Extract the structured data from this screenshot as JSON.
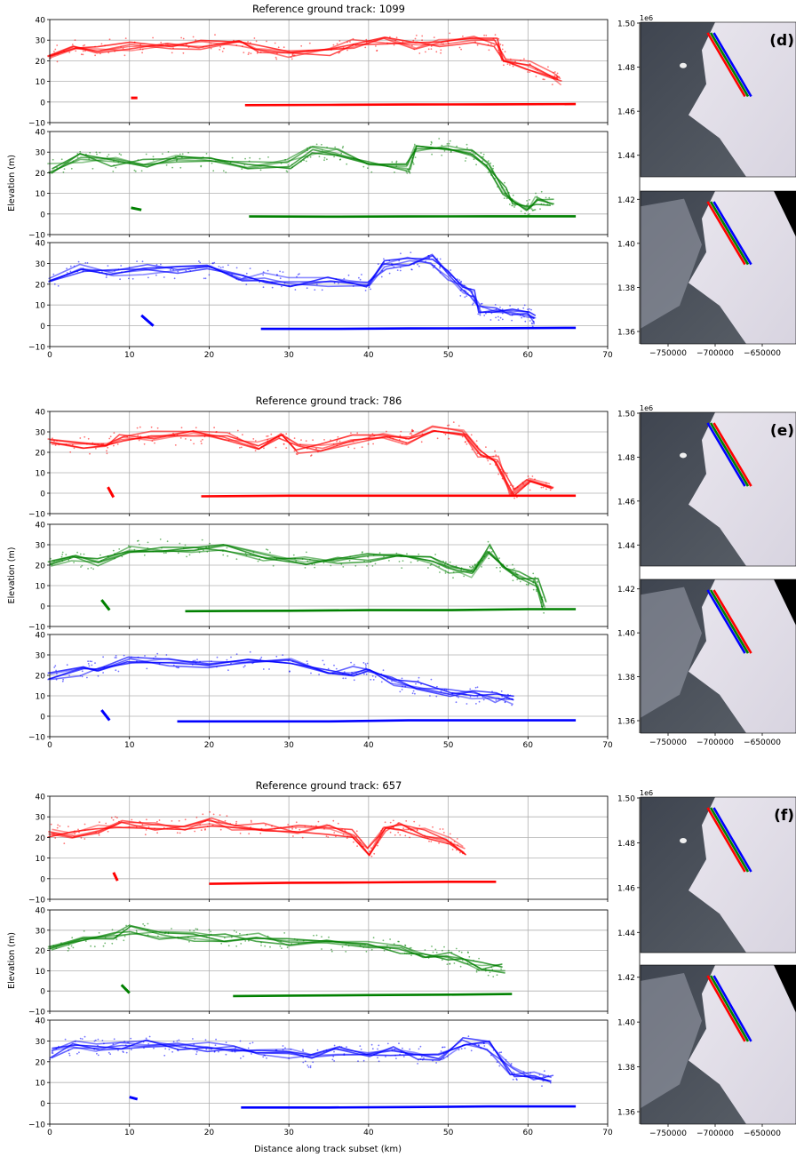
{
  "figure": {
    "shared_xlabel": "Distance along track subset (km)",
    "elev_ylabel": "Elevation (m)",
    "map_exponent_label": "1e6",
    "colors": {
      "track_red": "#ff0000",
      "track_green": "#008000",
      "track_blue": "#0000ff",
      "grid": "#b0b0b0"
    }
  },
  "chart_data": [
    {
      "type": "scatter",
      "group": "d",
      "title": "Reference ground track: 1099",
      "xlabel": "",
      "ylabel": "Elevation (m)",
      "xlim": [
        0,
        70
      ],
      "ylim": [
        -10,
        40
      ],
      "xticks": [
        0,
        10,
        20,
        30,
        40,
        50,
        60,
        70
      ],
      "yticks": [
        -10,
        0,
        10,
        20,
        30,
        40
      ],
      "grid": true,
      "panels": [
        {
          "color": "#ff0000",
          "upper": [
            [
              0,
              22
            ],
            [
              3,
              28
            ],
            [
              6,
              26
            ],
            [
              10,
              27
            ],
            [
              15,
              27
            ],
            [
              19,
              28
            ],
            [
              24,
              29
            ],
            [
              26,
              26
            ],
            [
              30,
              24
            ],
            [
              35,
              25
            ],
            [
              38,
              28
            ],
            [
              42,
              29
            ],
            [
              46,
              28
            ],
            [
              49,
              28
            ],
            [
              53,
              31
            ],
            [
              56,
              29
            ],
            [
              57,
              22
            ],
            [
              60,
              18
            ],
            [
              63,
              12
            ],
            [
              64,
              10
            ]
          ],
          "lower": [
            [
              24.5,
              -1.5
            ],
            [
              35,
              -1.4
            ],
            [
              45,
              -1.2
            ],
            [
              55,
              -1.1
            ],
            [
              66,
              -1
            ]
          ],
          "dips": [
            [
              10.2,
              -1
            ],
            [
              11,
              2
            ]
          ]
        },
        {
          "color": "#008000",
          "upper": [
            [
              0,
              22
            ],
            [
              4,
              27
            ],
            [
              8,
              25
            ],
            [
              12,
              25
            ],
            [
              16,
              27
            ],
            [
              20,
              25
            ],
            [
              25,
              24
            ],
            [
              30,
              24
            ],
            [
              33,
              31
            ],
            [
              36,
              30
            ],
            [
              40,
              24
            ],
            [
              45,
              22
            ],
            [
              46,
              32
            ],
            [
              50,
              33
            ],
            [
              53,
              29
            ],
            [
              55,
              23
            ],
            [
              57,
              12
            ],
            [
              58,
              7
            ],
            [
              60,
              2
            ],
            [
              61,
              7
            ],
            [
              63,
              6
            ]
          ],
          "lower": [
            [
              25,
              -1.2
            ],
            [
              35,
              -1.3
            ],
            [
              45,
              -1.2
            ],
            [
              55,
              -1.1
            ],
            [
              66,
              -1.1
            ]
          ],
          "dips": [
            [
              10.2,
              0
            ],
            [
              11.5,
              2
            ]
          ]
        },
        {
          "color": "#0000ff",
          "upper": [
            [
              0,
              22
            ],
            [
              4,
              28
            ],
            [
              8,
              26
            ],
            [
              12,
              27
            ],
            [
              16,
              27
            ],
            [
              20,
              27
            ],
            [
              24,
              24
            ],
            [
              27,
              23
            ],
            [
              30,
              21
            ],
            [
              35,
              21
            ],
            [
              40,
              21
            ],
            [
              42,
              29
            ],
            [
              45,
              31
            ],
            [
              48,
              32
            ],
            [
              50,
              24
            ],
            [
              52,
              17
            ],
            [
              53,
              15
            ],
            [
              54,
              7
            ],
            [
              56,
              7
            ],
            [
              58,
              7
            ],
            [
              60,
              6
            ],
            [
              61,
              3
            ]
          ],
          "lower": [
            [
              26.5,
              -1.5
            ],
            [
              35,
              -1.5
            ],
            [
              45,
              -1.3
            ],
            [
              55,
              -1.2
            ],
            [
              66,
              -1
            ]
          ],
          "dips": [
            [
              11.5,
              2
            ],
            [
              13,
              0
            ]
          ]
        }
      ]
    },
    {
      "type": "scatter",
      "group": "e",
      "title": "Reference ground track: 786",
      "xlabel": "",
      "ylabel": "Elevation (m)",
      "xlim": [
        0,
        70
      ],
      "ylim": [
        -10,
        40
      ],
      "xticks": [
        0,
        10,
        20,
        30,
        40,
        50,
        60,
        70
      ],
      "yticks": [
        -10,
        0,
        10,
        20,
        30,
        40
      ],
      "grid": true,
      "panels": [
        {
          "color": "#ff0000",
          "upper": [
            [
              0,
              25
            ],
            [
              4,
              24
            ],
            [
              7,
              22
            ],
            [
              9,
              28
            ],
            [
              13,
              28
            ],
            [
              18,
              28
            ],
            [
              22,
              28
            ],
            [
              26,
              24
            ],
            [
              29,
              27
            ],
            [
              31,
              22
            ],
            [
              34,
              22
            ],
            [
              38,
              26
            ],
            [
              42,
              27
            ],
            [
              45,
              26
            ],
            [
              48,
              31
            ],
            [
              52,
              30
            ],
            [
              54,
              20
            ],
            [
              56,
              16
            ],
            [
              58,
              1
            ],
            [
              60,
              5
            ],
            [
              63,
              4
            ]
          ],
          "lower": [
            [
              19,
              -1.5
            ],
            [
              30,
              -1.2
            ],
            [
              40,
              -1.2
            ],
            [
              50,
              -1.2
            ],
            [
              60,
              -1.2
            ],
            [
              66,
              -1.2
            ]
          ],
          "dips": [
            [
              7.3,
              0
            ],
            [
              8,
              -2
            ]
          ]
        },
        {
          "color": "#008000",
          "upper": [
            [
              0,
              21
            ],
            [
              3,
              23
            ],
            [
              6,
              22
            ],
            [
              10,
              28
            ],
            [
              14,
              29
            ],
            [
              18,
              28
            ],
            [
              22,
              28
            ],
            [
              27,
              24
            ],
            [
              32,
              22
            ],
            [
              36,
              22
            ],
            [
              40,
              24
            ],
            [
              44,
              23
            ],
            [
              48,
              22
            ],
            [
              50,
              18
            ],
            [
              53,
              16
            ],
            [
              55,
              28
            ],
            [
              57,
              18
            ],
            [
              59,
              15
            ],
            [
              61,
              11
            ],
            [
              62,
              0
            ]
          ],
          "lower": [
            [
              17,
              -2.5
            ],
            [
              30,
              -2.3
            ],
            [
              40,
              -2
            ],
            [
              50,
              -2
            ],
            [
              60,
              -1.5
            ],
            [
              66,
              -1.5
            ]
          ],
          "dips": [
            [
              6.5,
              0
            ],
            [
              7.5,
              -2
            ]
          ]
        },
        {
          "color": "#0000ff",
          "upper": [
            [
              0,
              20
            ],
            [
              4,
              22
            ],
            [
              6,
              24
            ],
            [
              10,
              27
            ],
            [
              15,
              27
            ],
            [
              20,
              26
            ],
            [
              25,
              28
            ],
            [
              30,
              26
            ],
            [
              35,
              23
            ],
            [
              38,
              22
            ],
            [
              40,
              22
            ],
            [
              43,
              17
            ],
            [
              46,
              15
            ],
            [
              50,
              12
            ],
            [
              53,
              10
            ],
            [
              56,
              9
            ],
            [
              58,
              8
            ]
          ],
          "lower": [
            [
              16,
              -2.5
            ],
            [
              25,
              -2.5
            ],
            [
              35,
              -2.5
            ],
            [
              45,
              -2
            ],
            [
              55,
              -2
            ],
            [
              66,
              -2
            ]
          ],
          "dips": [
            [
              6.5,
              0
            ],
            [
              7.5,
              -2
            ]
          ]
        }
      ]
    },
    {
      "type": "scatter",
      "group": "f",
      "title": "Reference ground track: 657",
      "xlabel": "Distance along track subset (km)",
      "ylabel": "Elevation (m)",
      "xlim": [
        0,
        70
      ],
      "ylim": [
        -10,
        40
      ],
      "xticks": [
        0,
        10,
        20,
        30,
        40,
        50,
        60,
        70
      ],
      "yticks": [
        -10,
        0,
        10,
        20,
        30,
        40
      ],
      "grid": true,
      "panels": [
        {
          "color": "#ff0000",
          "upper": [
            [
              0,
              22
            ],
            [
              3,
              21
            ],
            [
              6,
              24
            ],
            [
              9,
              27
            ],
            [
              13,
              25
            ],
            [
              17,
              26
            ],
            [
              20,
              28
            ],
            [
              23,
              26
            ],
            [
              27,
              25
            ],
            [
              31,
              24
            ],
            [
              35,
              24
            ],
            [
              38,
              22
            ],
            [
              40,
              13
            ],
            [
              42,
              23
            ],
            [
              44,
              25
            ],
            [
              47,
              22
            ],
            [
              50,
              19
            ],
            [
              52,
              14
            ]
          ],
          "lower": [
            [
              20,
              -2.5
            ],
            [
              30,
              -2
            ],
            [
              40,
              -1.8
            ],
            [
              50,
              -1.5
            ],
            [
              56,
              -1.5
            ]
          ],
          "dips": [
            [
              8,
              0
            ],
            [
              8.5,
              -1
            ]
          ]
        },
        {
          "color": "#008000",
          "upper": [
            [
              0,
              21
            ],
            [
              4,
              25
            ],
            [
              8,
              27
            ],
            [
              10,
              30
            ],
            [
              14,
              28
            ],
            [
              18,
              27
            ],
            [
              22,
              26
            ],
            [
              26,
              26
            ],
            [
              30,
              24
            ],
            [
              35,
              24
            ],
            [
              40,
              23
            ],
            [
              44,
              21
            ],
            [
              47,
              19
            ],
            [
              50,
              17
            ],
            [
              52,
              16
            ],
            [
              54,
              12
            ],
            [
              57,
              11
            ]
          ],
          "lower": [
            [
              23,
              -2.5
            ],
            [
              30,
              -2.3
            ],
            [
              40,
              -2
            ],
            [
              50,
              -1.8
            ],
            [
              58,
              -1.5
            ]
          ],
          "dips": [
            [
              9,
              0
            ],
            [
              10,
              -1
            ]
          ]
        },
        {
          "color": "#0000ff",
          "upper": [
            [
              0,
              24
            ],
            [
              3,
              28
            ],
            [
              6,
              27
            ],
            [
              9,
              27
            ],
            [
              12,
              28
            ],
            [
              16,
              27
            ],
            [
              20,
              27
            ],
            [
              23,
              26
            ],
            [
              26,
              25
            ],
            [
              30,
              24
            ],
            [
              33,
              21
            ],
            [
              36,
              25
            ],
            [
              40,
              24
            ],
            [
              43,
              25
            ],
            [
              46,
              23
            ],
            [
              49,
              22
            ],
            [
              52,
              30
            ],
            [
              55,
              28
            ],
            [
              58,
              15
            ],
            [
              61,
              13
            ],
            [
              63,
              12
            ]
          ],
          "lower": [
            [
              24,
              -2
            ],
            [
              35,
              -2
            ],
            [
              45,
              -1.8
            ],
            [
              55,
              -1.5
            ],
            [
              66,
              -1.5
            ]
          ],
          "dips": [
            [
              10,
              0
            ],
            [
              11,
              2
            ]
          ]
        }
      ]
    }
  ],
  "maps": [
    {
      "label": "(d)",
      "yticks": [
        "1.50",
        "1.48",
        "1.46",
        "1.44",
        "1.42",
        "1.40",
        "1.38",
        "1.36"
      ],
      "xticks": [
        "−750000",
        "−700000",
        "−650000"
      ]
    },
    {
      "label": "(e)",
      "yticks": [
        "1.50",
        "1.48",
        "1.46",
        "1.44",
        "1.42",
        "1.40",
        "1.38",
        "1.36"
      ],
      "xticks": [
        "−750000",
        "−700000",
        "−650000"
      ]
    },
    {
      "label": "(f)",
      "yticks": [
        "1.50",
        "1.48",
        "1.46",
        "1.44",
        "1.42",
        "1.40",
        "1.38",
        "1.36"
      ],
      "xticks": [
        "−750000",
        "−700000",
        "−650000"
      ]
    }
  ]
}
